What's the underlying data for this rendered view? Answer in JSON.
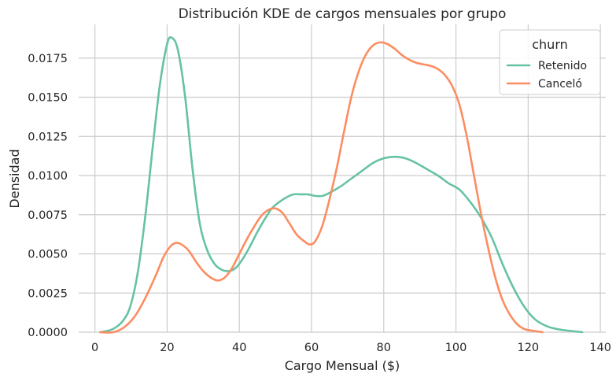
{
  "chart_data": {
    "type": "line",
    "title": "Distribución KDE de cargos mensuales por grupo",
    "xlabel": "Cargo Mensual ($)",
    "ylabel": "Densidad",
    "xlim": [
      -4.5,
      141.5
    ],
    "ylim": [
      0,
      0.01965
    ],
    "x_ticks": [
      0,
      20,
      40,
      60,
      80,
      100,
      120,
      140
    ],
    "x_tick_labels": [
      "0",
      "20",
      "40",
      "60",
      "80",
      "100",
      "120",
      "140"
    ],
    "y_ticks": [
      0,
      0.0025,
      0.005,
      0.0075,
      0.01,
      0.0125,
      0.015,
      0.0175
    ],
    "y_tick_labels": [
      "0.0000",
      "0.0025",
      "0.0050",
      "0.0075",
      "0.0100",
      "0.0125",
      "0.0150",
      "0.0175"
    ],
    "grid": true,
    "legend": {
      "title": "churn",
      "placement": "top-right"
    },
    "series": [
      {
        "name": "Retenido",
        "color": "#66c2a5",
        "points": [
          [
            1.5,
            0.0
          ],
          [
            5,
            0.0002
          ],
          [
            8,
            0.0008
          ],
          [
            10,
            0.0018
          ],
          [
            12,
            0.004
          ],
          [
            14,
            0.0075
          ],
          [
            16,
            0.0118
          ],
          [
            18,
            0.0158
          ],
          [
            20,
            0.0184
          ],
          [
            21.3,
            0.0188
          ],
          [
            23,
            0.018
          ],
          [
            25,
            0.015
          ],
          [
            27,
            0.0105
          ],
          [
            29,
            0.007
          ],
          [
            31,
            0.0053
          ],
          [
            33,
            0.0044
          ],
          [
            35,
            0.004
          ],
          [
            37,
            0.0039
          ],
          [
            39,
            0.0041
          ],
          [
            41,
            0.0047
          ],
          [
            43,
            0.0055
          ],
          [
            45,
            0.0064
          ],
          [
            47,
            0.0072
          ],
          [
            49,
            0.0079
          ],
          [
            51,
            0.0083
          ],
          [
            53,
            0.0086
          ],
          [
            55,
            0.0088
          ],
          [
            57,
            0.0088
          ],
          [
            59,
            0.0088
          ],
          [
            61,
            0.0087
          ],
          [
            63,
            0.0087
          ],
          [
            65,
            0.0089
          ],
          [
            68,
            0.0093
          ],
          [
            71,
            0.0098
          ],
          [
            74,
            0.0103
          ],
          [
            77,
            0.0108
          ],
          [
            80,
            0.0111
          ],
          [
            83,
            0.0112
          ],
          [
            86,
            0.0111
          ],
          [
            89,
            0.0108
          ],
          [
            92,
            0.0104
          ],
          [
            95,
            0.01
          ],
          [
            98,
            0.0095
          ],
          [
            101,
            0.0091
          ],
          [
            104,
            0.0083
          ],
          [
            107,
            0.0073
          ],
          [
            110,
            0.006
          ],
          [
            113,
            0.0043
          ],
          [
            116,
            0.0028
          ],
          [
            119,
            0.0016
          ],
          [
            122,
            0.0008
          ],
          [
            125,
            0.0004
          ],
          [
            128,
            0.0002
          ],
          [
            131,
            0.0001
          ],
          [
            135,
            0.0
          ]
        ]
      },
      {
        "name": "Canceló",
        "color": "#fc8d62",
        "points": [
          [
            1.5,
            0.0
          ],
          [
            5,
            0.0
          ],
          [
            8,
            0.0003
          ],
          [
            11,
            0.001
          ],
          [
            14,
            0.0022
          ],
          [
            17,
            0.0037
          ],
          [
            19,
            0.0048
          ],
          [
            21,
            0.0055
          ],
          [
            22.5,
            0.0057
          ],
          [
            24,
            0.0056
          ],
          [
            26,
            0.0052
          ],
          [
            28,
            0.0045
          ],
          [
            30,
            0.0039
          ],
          [
            32,
            0.0035
          ],
          [
            34,
            0.0033
          ],
          [
            36,
            0.0035
          ],
          [
            38,
            0.0041
          ],
          [
            40,
            0.005
          ],
          [
            42,
            0.0059
          ],
          [
            44,
            0.0067
          ],
          [
            46,
            0.0074
          ],
          [
            48,
            0.0078
          ],
          [
            50,
            0.0079
          ],
          [
            52,
            0.0076
          ],
          [
            54,
            0.0069
          ],
          [
            56,
            0.0062
          ],
          [
            58,
            0.0058
          ],
          [
            59.5,
            0.0056
          ],
          [
            61,
            0.0058
          ],
          [
            63,
            0.0068
          ],
          [
            65,
            0.0085
          ],
          [
            67,
            0.0105
          ],
          [
            69,
            0.0128
          ],
          [
            71,
            0.015
          ],
          [
            73,
            0.0166
          ],
          [
            75,
            0.0177
          ],
          [
            77,
            0.0183
          ],
          [
            79,
            0.0185
          ],
          [
            81,
            0.0184
          ],
          [
            83,
            0.0181
          ],
          [
            85,
            0.0177
          ],
          [
            87,
            0.0174
          ],
          [
            89,
            0.0172
          ],
          [
            91,
            0.0171
          ],
          [
            93,
            0.017
          ],
          [
            95,
            0.0168
          ],
          [
            97,
            0.0164
          ],
          [
            99,
            0.0157
          ],
          [
            101,
            0.0145
          ],
          [
            103,
            0.0125
          ],
          [
            105,
            0.01
          ],
          [
            107,
            0.0075
          ],
          [
            109,
            0.0053
          ],
          [
            111,
            0.0034
          ],
          [
            113,
            0.002
          ],
          [
            115,
            0.0011
          ],
          [
            117,
            0.0005
          ],
          [
            119,
            0.0002
          ],
          [
            121,
            0.0001
          ],
          [
            124,
            0.0
          ]
        ]
      }
    ]
  }
}
